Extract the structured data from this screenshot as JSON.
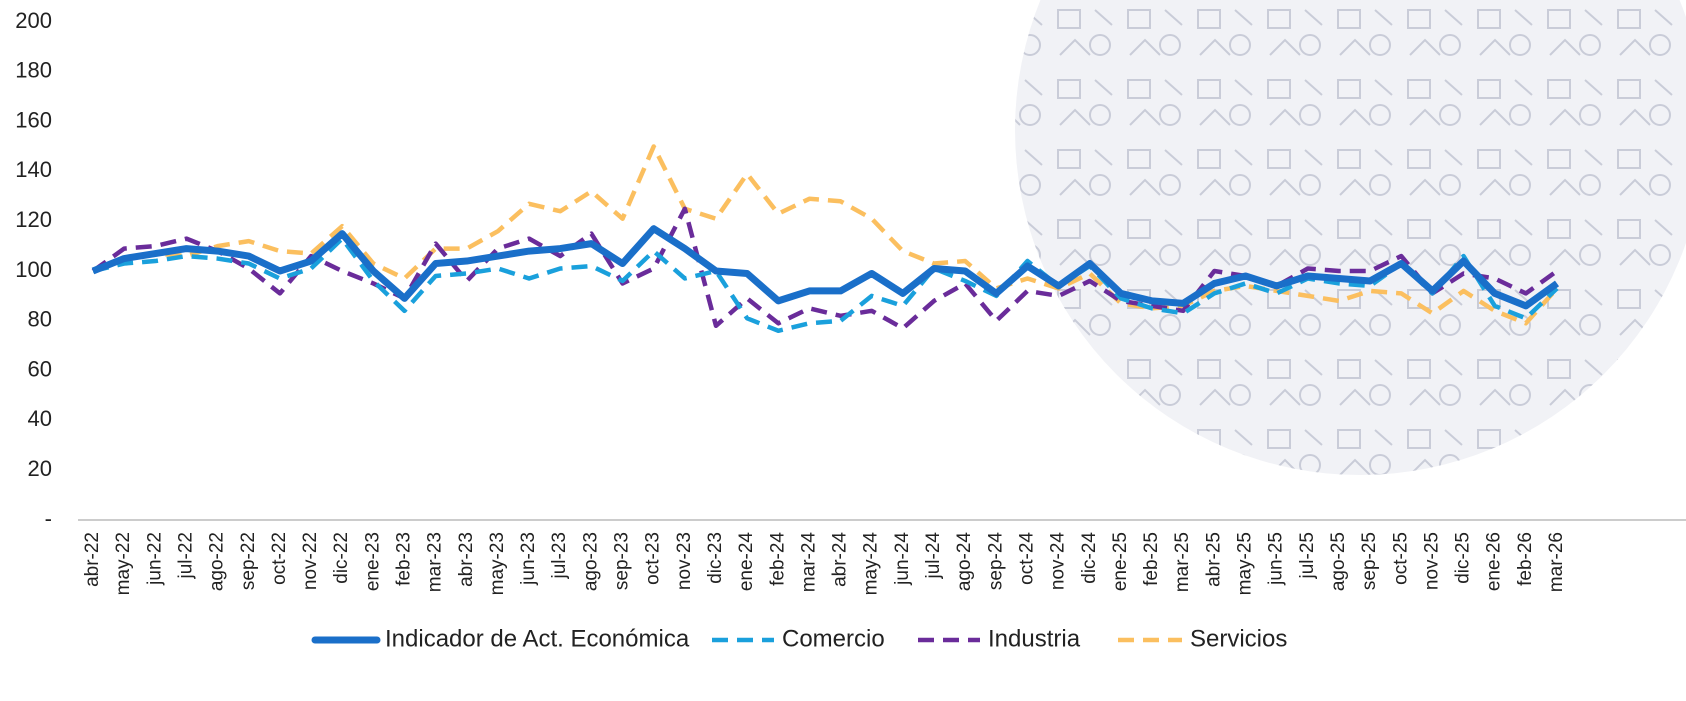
{
  "chart_data": {
    "type": "line",
    "categories": [
      "abr-22",
      "may-22",
      "jun-22",
      "jul-22",
      "ago-22",
      "sep-22",
      "oct-22",
      "nov-22",
      "dic-22",
      "ene-23",
      "feb-23",
      "mar-23",
      "abr-23",
      "may-23",
      "jun-23",
      "jul-23",
      "ago-23",
      "sep-23",
      "oct-23",
      "nov-23",
      "dic-23",
      "ene-24",
      "feb-24",
      "mar-24",
      "abr-24",
      "may-24",
      "jun-24",
      "jul-24",
      "ago-24",
      "sep-24",
      "oct-24",
      "nov-24",
      "dic-24",
      "ene-25",
      "feb-25",
      "mar-25",
      "abr-25",
      "may-25",
      "jun-25",
      "jul-25",
      "ago-25",
      "sep-25",
      "oct-25",
      "nov-25",
      "dic-25",
      "ene-26",
      "feb-26",
      "mar-26"
    ],
    "series": [
      {
        "name": "Indicador de Act. Económica",
        "color": "#1a6fc9",
        "style": "solid",
        "values": [
          100,
          105,
          107,
          109,
          108,
          106,
          100,
          104,
          115,
          100,
          89,
          103,
          104,
          106,
          108,
          109,
          111,
          103,
          117,
          109,
          100,
          99,
          88,
          92,
          92,
          99,
          91,
          101,
          100,
          91,
          102,
          94,
          103,
          91,
          88,
          87,
          95,
          98,
          94,
          98,
          97,
          96,
          103,
          92,
          104,
          91,
          86,
          95
        ]
      },
      {
        "name": "Comercio",
        "color": "#1aa0dc",
        "style": "dashed",
        "values": [
          100,
          103,
          104,
          106,
          105,
          103,
          97,
          101,
          113,
          96,
          84,
          98,
          99,
          101,
          97,
          101,
          102,
          96,
          108,
          97,
          100,
          81,
          76,
          79,
          80,
          90,
          86,
          101,
          96,
          90,
          104,
          94,
          102,
          89,
          85,
          83,
          91,
          95,
          91,
          97,
          95,
          94,
          103,
          91,
          106,
          86,
          81,
          93
        ]
      },
      {
        "name": "Industria",
        "color": "#6a2c9a",
        "style": "dashed",
        "values": [
          100,
          109,
          110,
          113,
          108,
          101,
          91,
          106,
          100,
          95,
          89,
          111,
          96,
          109,
          113,
          106,
          115,
          95,
          101,
          125,
          78,
          89,
          79,
          85,
          82,
          84,
          77,
          88,
          95,
          80,
          92,
          90,
          96,
          88,
          86,
          84,
          100,
          98,
          94,
          101,
          100,
          100,
          106,
          91,
          99,
          97,
          91,
          100
        ]
      },
      {
        "name": "Servicios",
        "color": "#fbbf5f",
        "style": "dashed",
        "values": [
          100,
          104,
          107,
          106,
          110,
          112,
          108,
          107,
          118,
          103,
          97,
          109,
          109,
          116,
          127,
          124,
          132,
          121,
          150,
          125,
          121,
          139,
          123,
          129,
          128,
          121,
          108,
          103,
          104,
          93,
          97,
          93,
          99,
          87,
          85,
          86,
          92,
          94,
          92,
          90,
          88,
          92,
          91,
          83,
          92,
          84,
          79,
          93
        ]
      }
    ],
    "ylim": [
      0,
      200
    ],
    "yticks": [
      {
        "value": 0,
        "label": "-"
      },
      20,
      40,
      60,
      80,
      100,
      120,
      140,
      160,
      180,
      200
    ],
    "grid": false,
    "legend": "bottom"
  }
}
